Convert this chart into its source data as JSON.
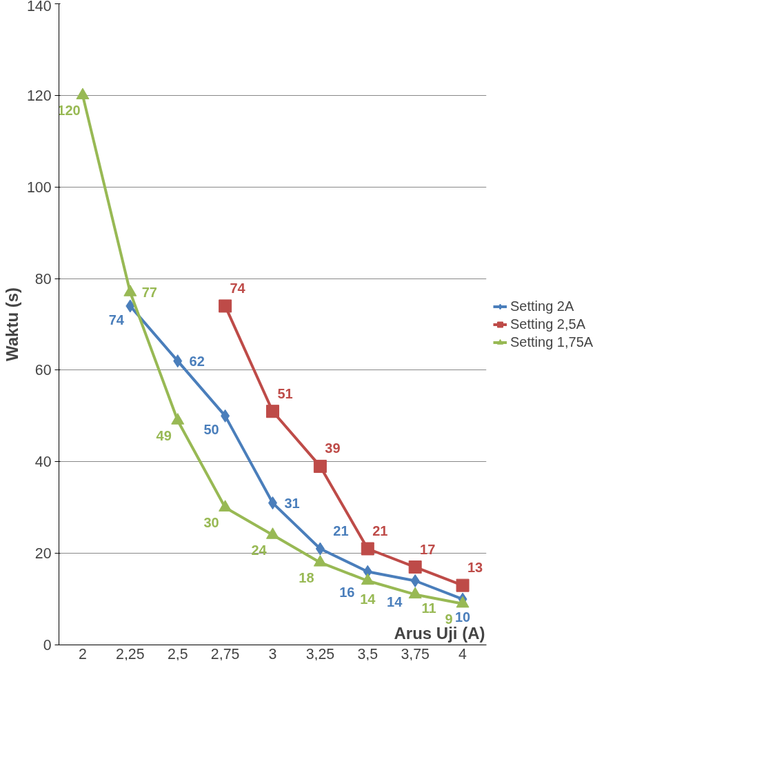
{
  "chart_data": {
    "type": "line",
    "xlabel": "Arus Uji (A)",
    "ylabel": "Waktu (s)",
    "categories": [
      "2",
      "2,25",
      "2,5",
      "2,75",
      "3",
      "3,25",
      "3,5",
      "3,75",
      "4"
    ],
    "series": [
      {
        "name": "Setting 2A",
        "color": "#4a7ebb",
        "marker": "diamond",
        "values": [
          null,
          74,
          62,
          50,
          31,
          21,
          16,
          14,
          10
        ]
      },
      {
        "name": "Setting 2,5A",
        "color": "#be4b48",
        "marker": "square",
        "values": [
          null,
          null,
          null,
          74,
          51,
          39,
          21,
          17,
          13
        ]
      },
      {
        "name": "Setting 1,75A",
        "color": "#98b954",
        "marker": "triangle",
        "values": [
          120,
          77,
          49,
          30,
          24,
          18,
          14,
          11,
          9
        ]
      }
    ],
    "ylim": [
      0,
      140
    ],
    "yticks": [
      0,
      20,
      40,
      60,
      80,
      100,
      120,
      140
    ],
    "grid": "y",
    "legend": "right",
    "data_labels": true,
    "line_style": "solid"
  }
}
